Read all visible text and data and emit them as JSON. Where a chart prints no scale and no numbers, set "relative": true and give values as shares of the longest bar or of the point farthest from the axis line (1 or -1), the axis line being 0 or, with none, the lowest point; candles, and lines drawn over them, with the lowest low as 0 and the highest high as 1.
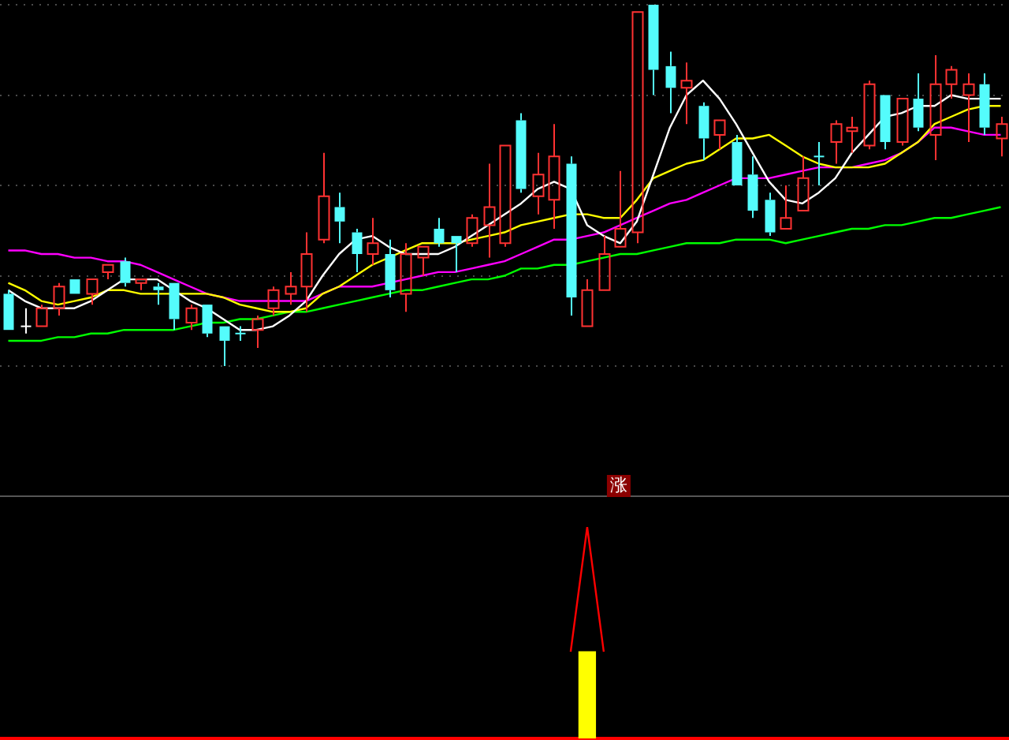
{
  "chart_data": [
    {
      "type": "candlestick",
      "relative": true,
      "grid": "y",
      "legend": false,
      "categories": [
        null,
        null,
        null,
        null,
        null,
        null,
        null,
        null,
        null,
        null,
        null,
        null,
        null,
        null,
        null,
        null,
        null,
        null,
        null,
        null,
        null,
        null,
        null,
        null,
        null,
        null,
        null,
        null,
        null,
        null,
        null,
        null,
        null,
        null,
        null,
        null,
        null,
        null,
        null,
        null,
        null,
        null,
        null,
        null,
        null,
        null,
        null,
        null,
        null,
        null,
        null,
        null,
        null,
        null,
        null,
        null,
        null,
        null,
        null,
        null,
        null
      ],
      "ohlc": [
        [
          0.2,
          0.21,
          0.1,
          0.1
        ],
        [
          0.11,
          0.16,
          0.09,
          0.11
        ],
        [
          0.11,
          0.17,
          0.11,
          0.16
        ],
        [
          0.16,
          0.23,
          0.14,
          0.22
        ],
        [
          0.24,
          0.24,
          0.2,
          0.2
        ],
        [
          0.2,
          0.24,
          0.17,
          0.24
        ],
        [
          0.26,
          0.28,
          0.24,
          0.28
        ],
        [
          0.29,
          0.3,
          0.22,
          0.23
        ],
        [
          0.23,
          0.24,
          0.21,
          0.24
        ],
        [
          0.22,
          0.23,
          0.17,
          0.21
        ],
        [
          0.23,
          0.23,
          0.1,
          0.13
        ],
        [
          0.12,
          0.17,
          0.1,
          0.16
        ],
        [
          0.17,
          0.17,
          0.08,
          0.09
        ],
        [
          0.11,
          0.11,
          0,
          0.07
        ],
        [
          0.09,
          0.11,
          0.07,
          0.09
        ],
        [
          0.1,
          0.14,
          0.05,
          0.13
        ],
        [
          0.16,
          0.22,
          0.14,
          0.21
        ],
        [
          0.2,
          0.26,
          0.17,
          0.22
        ],
        [
          0.22,
          0.37,
          0.15,
          0.31
        ],
        [
          0.35,
          0.59,
          0.34,
          0.47
        ],
        [
          0.44,
          0.48,
          0.34,
          0.4
        ],
        [
          0.37,
          0.38,
          0.26,
          0.31
        ],
        [
          0.31,
          0.41,
          0.28,
          0.34
        ],
        [
          0.31,
          0.35,
          0.19,
          0.21
        ],
        [
          0.2,
          0.34,
          0.15,
          0.31
        ],
        [
          0.3,
          0.33,
          0.25,
          0.33
        ],
        [
          0.38,
          0.41,
          0.33,
          0.34
        ],
        [
          0.36,
          0.36,
          0.26,
          0.34
        ],
        [
          0.34,
          0.42,
          0.33,
          0.41
        ],
        [
          0.39,
          0.56,
          0.3,
          0.44
        ],
        [
          0.34,
          0.61,
          0.33,
          0.61
        ],
        [
          0.68,
          0.7,
          0.48,
          0.49
        ],
        [
          0.47,
          0.59,
          0.42,
          0.53
        ],
        [
          0.46,
          0.67,
          0.38,
          0.58
        ],
        [
          0.56,
          0.58,
          0.14,
          0.19
        ],
        [
          0.11,
          0.24,
          0.11,
          0.21
        ],
        [
          0.21,
          0.36,
          0.21,
          0.31
        ],
        [
          0.33,
          0.54,
          0.33,
          0.38
        ],
        [
          0.37,
          0.98,
          0.34,
          0.98
        ],
        [
          1.0,
          1.0,
          0.75,
          0.82
        ],
        [
          0.83,
          0.87,
          0.7,
          0.77
        ],
        [
          0.77,
          0.84,
          0.67,
          0.79
        ],
        [
          0.72,
          0.73,
          0.57,
          0.63
        ],
        [
          0.64,
          0.68,
          0.6,
          0.68
        ],
        [
          0.62,
          0.64,
          0.5,
          0.5
        ],
        [
          0.53,
          0.58,
          0.41,
          0.43
        ],
        [
          0.46,
          0.48,
          0.36,
          0.37
        ],
        [
          0.38,
          0.5,
          0.38,
          0.41
        ],
        [
          0.43,
          0.58,
          0.43,
          0.52
        ],
        [
          0.58,
          0.62,
          0.5,
          0.58
        ],
        [
          0.62,
          0.68,
          0.56,
          0.67
        ],
        [
          0.65,
          0.69,
          0.59,
          0.66
        ],
        [
          0.61,
          0.79,
          0.6,
          0.78
        ],
        [
          0.75,
          0.75,
          0.6,
          0.62
        ],
        [
          0.62,
          0.74,
          0.61,
          0.74
        ],
        [
          0.74,
          0.81,
          0.65,
          0.66
        ],
        [
          0.64,
          0.86,
          0.57,
          0.78
        ],
        [
          0.78,
          0.83,
          0.74,
          0.82
        ],
        [
          0.75,
          0.81,
          0.62,
          0.78
        ],
        [
          0.78,
          0.81,
          0.64,
          0.66
        ],
        [
          0.63,
          0.69,
          0.58,
          0.67
        ]
      ],
      "colors": [
        "#54fcfc",
        "#ffffff",
        "#ff3232",
        "#ff3232",
        "#54fcfc",
        "#ff3232",
        "#ff3232",
        "#54fcfc",
        "#ff3232",
        "#54fcfc",
        "#54fcfc",
        "#ff3232",
        "#54fcfc",
        "#54fcfc",
        "#54fcfc",
        "#ff3232",
        "#ff3232",
        "#ff3232",
        "#ff3232",
        "#ff3232",
        "#54fcfc",
        "#54fcfc",
        "#ff3232",
        "#54fcfc",
        "#ff3232",
        "#ff3232",
        "#54fcfc",
        "#54fcfc",
        "#ff3232",
        "#ff3232",
        "#ff3232",
        "#54fcfc",
        "#ff3232",
        "#ff3232",
        "#54fcfc",
        "#ff3232",
        "#ff3232",
        "#ff3232",
        "#ff3232",
        "#54fcfc",
        "#54fcfc",
        "#ff3232",
        "#54fcfc",
        "#ff3232",
        "#54fcfc",
        "#54fcfc",
        "#54fcfc",
        "#ff3232",
        "#ff3232",
        "#54fcfc",
        "#ff3232",
        "#ff3232",
        "#ff3232",
        "#54fcfc",
        "#ff3232",
        "#54fcfc",
        "#ff3232",
        "#ff3232",
        "#ff3232",
        "#54fcfc",
        "#ff3232"
      ],
      "series": [
        {
          "type": "line",
          "color": "#ffffff",
          "values": [
            0.21,
            0.18,
            0.16,
            0.16,
            0.16,
            0.18,
            0.21,
            0.24,
            0.24,
            0.24,
            0.21,
            0.18,
            0.16,
            0.13,
            0.1,
            0.1,
            0.11,
            0.14,
            0.18,
            0.25,
            0.31,
            0.35,
            0.36,
            0.33,
            0.31,
            0.31,
            0.31,
            0.33,
            0.36,
            0.39,
            0.42,
            0.45,
            0.49,
            0.51,
            0.49,
            0.39,
            0.36,
            0.34,
            0.4,
            0.53,
            0.66,
            0.75,
            0.79,
            0.74,
            0.67,
            0.59,
            0.51,
            0.46,
            0.45,
            0.48,
            0.52,
            0.59,
            0.64,
            0.69,
            0.7,
            0.72,
            0.72,
            0.75,
            0.74,
            0.74,
            0.74
          ]
        },
        {
          "type": "line",
          "color": "#ffff00",
          "values": [
            0.23,
            0.21,
            0.18,
            0.17,
            0.18,
            0.19,
            0.21,
            0.21,
            0.2,
            0.2,
            0.2,
            0.2,
            0.2,
            0.19,
            0.17,
            0.16,
            0.15,
            0.15,
            0.16,
            0.2,
            0.22,
            0.25,
            0.28,
            0.3,
            0.32,
            0.34,
            0.34,
            0.34,
            0.35,
            0.36,
            0.37,
            0.39,
            0.4,
            0.41,
            0.42,
            0.42,
            0.41,
            0.41,
            0.46,
            0.52,
            0.54,
            0.56,
            0.57,
            0.6,
            0.63,
            0.63,
            0.64,
            0.61,
            0.58,
            0.56,
            0.55,
            0.55,
            0.55,
            0.56,
            0.59,
            0.62,
            0.67,
            0.69,
            0.71,
            0.72,
            0.72
          ]
        },
        {
          "type": "line",
          "color": "#ff00ff",
          "values": [
            0.32,
            0.32,
            0.31,
            0.31,
            0.3,
            0.3,
            0.29,
            0.29,
            0.28,
            0.26,
            0.24,
            0.22,
            0.2,
            0.19,
            0.18,
            0.18,
            0.18,
            0.18,
            0.18,
            0.2,
            0.22,
            0.22,
            0.22,
            0.23,
            0.24,
            0.25,
            0.26,
            0.26,
            0.27,
            0.28,
            0.29,
            0.31,
            0.33,
            0.35,
            0.35,
            0.36,
            0.37,
            0.39,
            0.41,
            0.43,
            0.45,
            0.46,
            0.48,
            0.5,
            0.52,
            0.52,
            0.52,
            0.53,
            0.54,
            0.55,
            0.55,
            0.55,
            0.56,
            0.57,
            0.59,
            0.62,
            0.66,
            0.66,
            0.65,
            0.64,
            0.64
          ]
        },
        {
          "type": "line",
          "color": "#00ff00",
          "values": [
            0.07,
            0.07,
            0.07,
            0.08,
            0.08,
            0.09,
            0.09,
            0.1,
            0.1,
            0.1,
            0.1,
            0.11,
            0.12,
            0.12,
            0.13,
            0.13,
            0.14,
            0.15,
            0.15,
            0.16,
            0.17,
            0.18,
            0.19,
            0.2,
            0.21,
            0.21,
            0.22,
            0.23,
            0.24,
            0.24,
            0.25,
            0.27,
            0.27,
            0.28,
            0.28,
            0.29,
            0.3,
            0.31,
            0.31,
            0.32,
            0.33,
            0.34,
            0.34,
            0.34,
            0.35,
            0.35,
            0.35,
            0.34,
            0.35,
            0.36,
            0.37,
            0.38,
            0.38,
            0.39,
            0.39,
            0.4,
            0.41,
            0.41,
            0.42,
            0.43,
            0.44
          ]
        }
      ]
    },
    {
      "type": "bar",
      "relative": true,
      "legend": false,
      "annotations": [
        "涨"
      ],
      "categories": [
        null,
        null,
        null,
        null,
        null,
        null,
        null,
        null,
        null,
        null,
        null,
        null,
        null,
        null,
        null,
        null,
        null,
        null,
        null,
        null,
        null,
        null,
        null,
        null,
        null,
        null,
        null,
        null,
        null,
        null,
        null,
        null,
        null,
        null,
        null,
        null,
        null,
        null,
        null,
        null,
        null,
        null,
        null,
        null,
        null,
        null,
        null,
        null,
        null,
        null,
        null,
        null,
        null,
        null,
        null,
        null,
        null,
        null,
        null,
        null,
        null
      ],
      "series": [
        {
          "type": "bar",
          "color": "#ffff00",
          "values": [
            null,
            null,
            null,
            null,
            null,
            null,
            null,
            null,
            null,
            null,
            null,
            null,
            null,
            null,
            null,
            null,
            null,
            null,
            null,
            null,
            null,
            null,
            null,
            null,
            null,
            null,
            null,
            null,
            null,
            null,
            null,
            null,
            null,
            null,
            null,
            0.41,
            null,
            null,
            null,
            null,
            null,
            null,
            null,
            null,
            null,
            null,
            null,
            null,
            null,
            null,
            null,
            null,
            null,
            null,
            null,
            null,
            null,
            null,
            null,
            null,
            null
          ]
        },
        {
          "type": "line",
          "color": "#ff0000",
          "values": [
            null,
            null,
            null,
            null,
            null,
            null,
            null,
            null,
            null,
            null,
            null,
            null,
            null,
            null,
            null,
            null,
            null,
            null,
            null,
            null,
            null,
            null,
            null,
            null,
            null,
            null,
            null,
            null,
            null,
            null,
            null,
            null,
            null,
            null,
            0.41,
            1,
            0.41,
            null,
            null,
            null,
            null,
            null,
            null,
            null,
            null,
            null,
            null,
            null,
            null,
            null,
            null,
            null,
            null,
            null,
            null,
            null,
            null,
            null,
            null,
            null,
            null
          ]
        }
      ]
    }
  ]
}
